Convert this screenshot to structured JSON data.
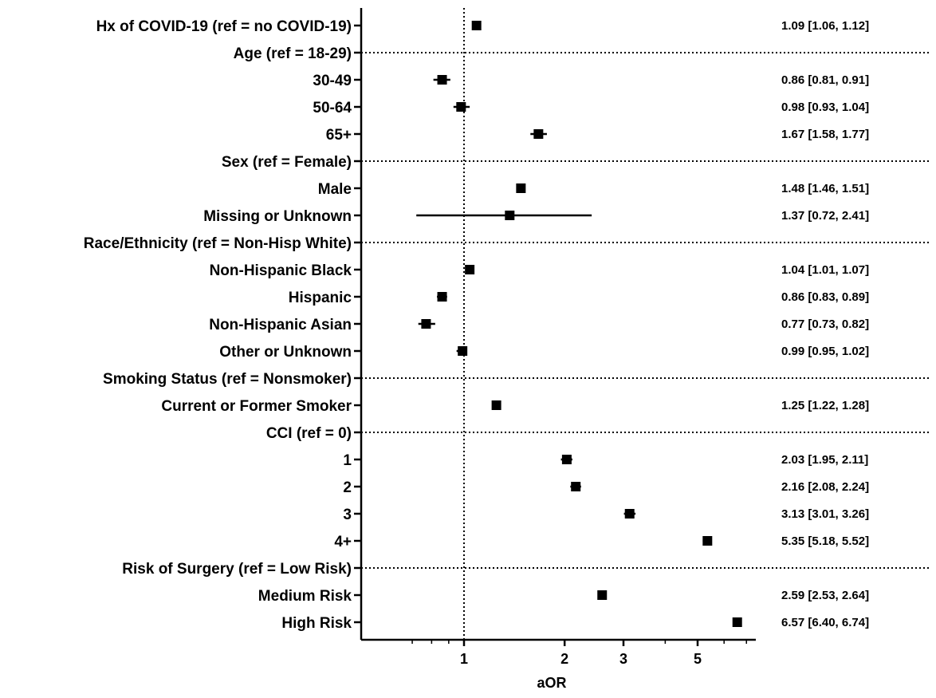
{
  "chart_data": {
    "type": "forest",
    "xlabel": "aOR",
    "xscale": "log",
    "xlim": [
      0.6,
      7.2
    ],
    "xticks": [
      1,
      2,
      3,
      5
    ],
    "xtick_labels": [
      "1",
      "2",
      "3",
      "5"
    ],
    "reference_line": 1,
    "rows": [
      {
        "label": "Hx of COVID-19 (ref = no COVID-19)",
        "kind": "item",
        "estimate": 1.09,
        "lower": 1.06,
        "upper": 1.12,
        "text": "1.09 [1.06, 1.12]"
      },
      {
        "label": "Age (ref = 18-29)",
        "kind": "header"
      },
      {
        "label": "30-49",
        "kind": "item",
        "estimate": 0.86,
        "lower": 0.81,
        "upper": 0.91,
        "text": "0.86 [0.81, 0.91]"
      },
      {
        "label": "50-64",
        "kind": "item",
        "estimate": 0.98,
        "lower": 0.93,
        "upper": 1.04,
        "text": "0.98 [0.93, 1.04]"
      },
      {
        "label": "65+",
        "kind": "item",
        "estimate": 1.67,
        "lower": 1.58,
        "upper": 1.77,
        "text": "1.67 [1.58, 1.77]"
      },
      {
        "label": "Sex (ref = Female)",
        "kind": "header"
      },
      {
        "label": "Male",
        "kind": "item",
        "estimate": 1.48,
        "lower": 1.46,
        "upper": 1.51,
        "text": "1.48 [1.46, 1.51]"
      },
      {
        "label": "Missing or Unknown",
        "kind": "item",
        "estimate": 1.37,
        "lower": 0.72,
        "upper": 2.41,
        "text": "1.37 [0.72, 2.41]"
      },
      {
        "label": "Race/Ethnicity (ref = Non-Hisp White)",
        "kind": "header"
      },
      {
        "label": "Non-Hispanic Black",
        "kind": "item",
        "estimate": 1.04,
        "lower": 1.01,
        "upper": 1.07,
        "text": "1.04 [1.01, 1.07]"
      },
      {
        "label": "Hispanic",
        "kind": "item",
        "estimate": 0.86,
        "lower": 0.83,
        "upper": 0.89,
        "text": "0.86 [0.83, 0.89]"
      },
      {
        "label": "Non-Hispanic Asian",
        "kind": "item",
        "estimate": 0.77,
        "lower": 0.73,
        "upper": 0.82,
        "text": "0.77 [0.73, 0.82]"
      },
      {
        "label": "Other or Unknown",
        "kind": "item",
        "estimate": 0.99,
        "lower": 0.95,
        "upper": 1.02,
        "text": "0.99 [0.95, 1.02]"
      },
      {
        "label": "Smoking Status (ref = Nonsmoker)",
        "kind": "header"
      },
      {
        "label": "Current or Former Smoker",
        "kind": "item",
        "estimate": 1.25,
        "lower": 1.22,
        "upper": 1.28,
        "text": "1.25 [1.22, 1.28]"
      },
      {
        "label": "CCI (ref = 0)",
        "kind": "header"
      },
      {
        "label": "1",
        "kind": "item",
        "estimate": 2.03,
        "lower": 1.95,
        "upper": 2.11,
        "text": "2.03 [1.95, 2.11]"
      },
      {
        "label": "2",
        "kind": "item",
        "estimate": 2.16,
        "lower": 2.08,
        "upper": 2.24,
        "text": "2.16 [2.08, 2.24]"
      },
      {
        "label": "3",
        "kind": "item",
        "estimate": 3.13,
        "lower": 3.01,
        "upper": 3.26,
        "text": "3.13 [3.01, 3.26]"
      },
      {
        "label": "4+",
        "kind": "item",
        "estimate": 5.35,
        "lower": 5.18,
        "upper": 5.52,
        "text": "5.35 [5.18, 5.52]"
      },
      {
        "label": "Risk of Surgery (ref = Low Risk)",
        "kind": "header"
      },
      {
        "label": "Medium Risk",
        "kind": "item",
        "estimate": 2.59,
        "lower": 2.53,
        "upper": 2.64,
        "text": "2.59 [2.53, 2.64]"
      },
      {
        "label": "High Risk",
        "kind": "item",
        "estimate": 6.57,
        "lower": 6.4,
        "upper": 6.74,
        "text": "6.57 [6.40, 6.74]"
      }
    ]
  }
}
